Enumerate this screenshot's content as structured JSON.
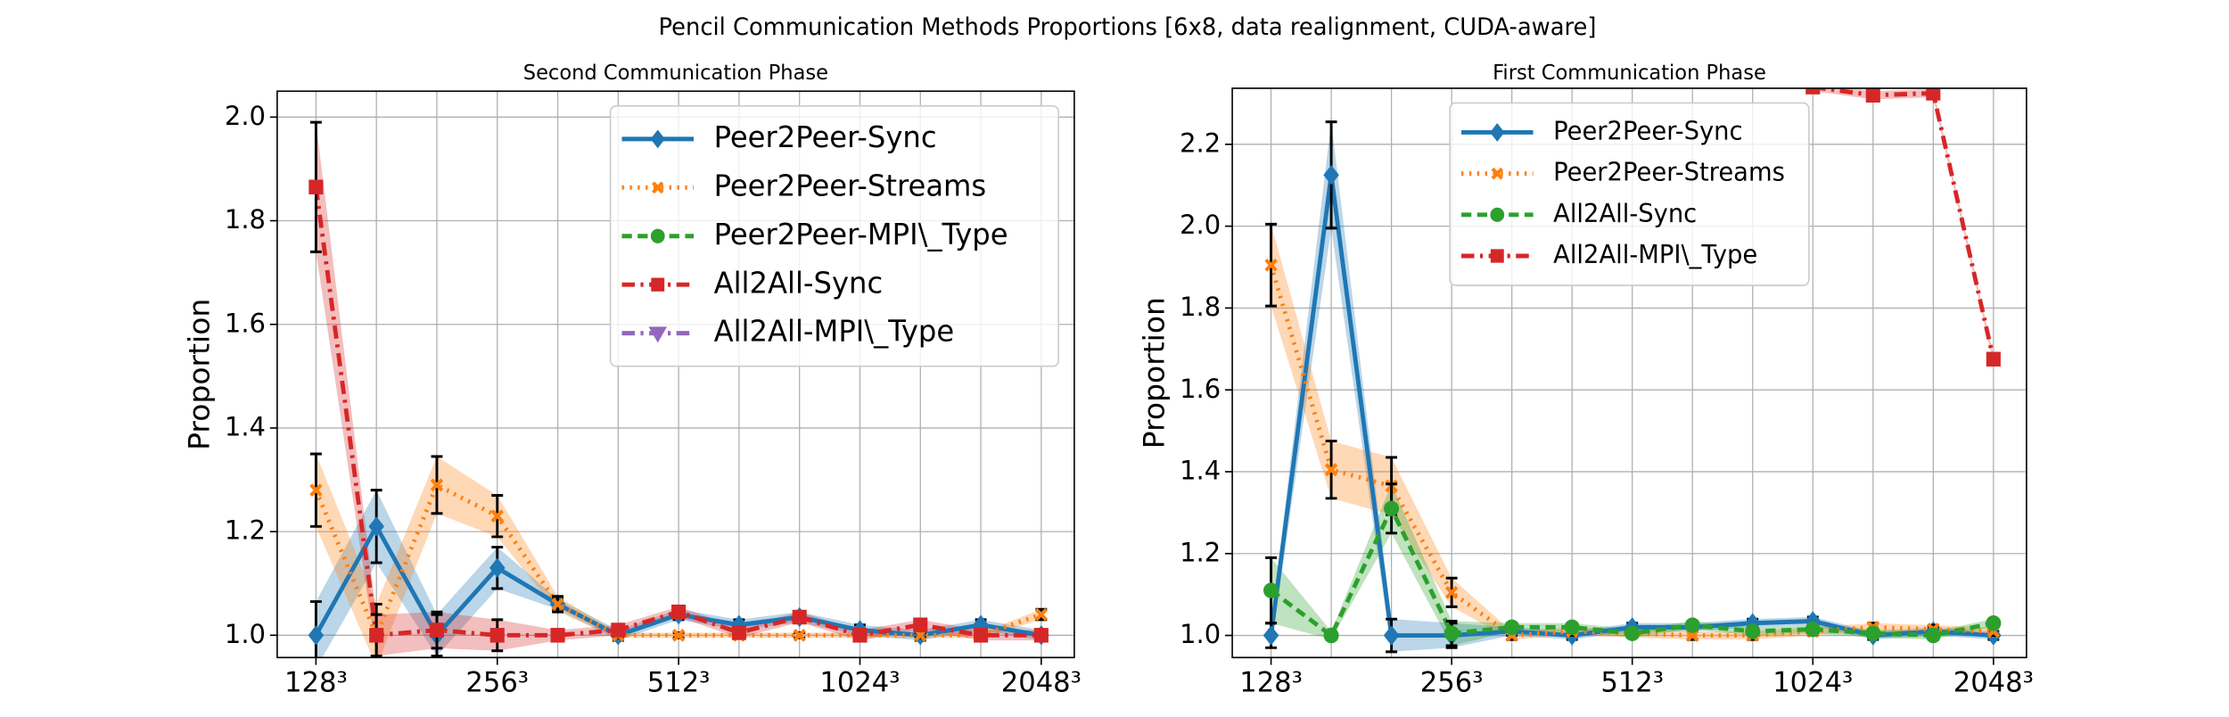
{
  "title": "Pencil Communication Methods Proportions [6x8, data realignment, CUDA-aware]",
  "chart_data": [
    {
      "type": "line",
      "title": "Second Communication Phase",
      "ylabel": "Proportion",
      "grid": true,
      "legend": "upper right",
      "categories": [
        "128³",
        null,
        null,
        "256³",
        null,
        null,
        "512³",
        null,
        null,
        "1024³",
        null,
        null,
        "2048³"
      ],
      "ylim": [
        0.957,
        2.05
      ],
      "yticks": [
        {
          "value": 1.0,
          "label": "1.0"
        },
        {
          "value": 1.2,
          "label": "1.2"
        },
        {
          "value": 1.4,
          "label": "1.4"
        },
        {
          "value": 1.6,
          "label": "1.6"
        },
        {
          "value": 1.8,
          "label": "1.8"
        },
        {
          "value": 2.0,
          "label": "2.0"
        }
      ],
      "series": [
        {
          "name": "Peer2Peer-Sync",
          "color": "#1f77b4",
          "linestyle": "solid",
          "marker": "diamond",
          "values": [
            1.0,
            1.21,
            1.0,
            1.13,
            1.06,
            1.0,
            1.04,
            1.02,
            1.035,
            1.01,
            1.0,
            1.02,
            1.0
          ],
          "errors": [
            0.065,
            0.07,
            0.04,
            0.04,
            0.01,
            0.01,
            0.01,
            0.01,
            0.01,
            0.01,
            0.01,
            0.01,
            0.01
          ]
        },
        {
          "name": "Peer2Peer-Streams",
          "color": "#ff7f0e",
          "linestyle": "dotted",
          "marker": "x",
          "values": [
            1.28,
            1.0,
            1.29,
            1.23,
            1.06,
            1.0,
            1.0,
            1.0,
            1.0,
            1.0,
            1.0,
            1.0,
            1.04
          ],
          "errors": [
            0.07,
            0.06,
            0.055,
            0.04,
            0.015,
            0.005,
            0.005,
            0.005,
            0.005,
            0.005,
            0.005,
            0.005,
            0.01
          ]
        },
        {
          "name": "Peer2Peer-MPI\\_Type",
          "color": "#2ca02c",
          "linestyle": "dashed",
          "marker": "circle",
          "values": [
            null,
            null,
            null,
            null,
            null,
            null,
            null,
            null,
            null,
            null,
            null,
            null,
            null
          ]
        },
        {
          "name": "All2All-Sync",
          "color": "#d62728",
          "linestyle": "dashdot",
          "marker": "square",
          "values": [
            1.865,
            1.0,
            1.01,
            1.0,
            1.0,
            1.01,
            1.045,
            1.005,
            1.035,
            1.0,
            1.02,
            1.0,
            1.0
          ],
          "errors": [
            0.125,
            0.04,
            0.035,
            0.03,
            0.01,
            0.01,
            0.01,
            0.01,
            0.01,
            0.01,
            0.01,
            0.01,
            0.01
          ]
        },
        {
          "name": "All2All-MPI\\_Type",
          "color": "#9467bd",
          "linestyle": "dashdot",
          "marker": "triangle",
          "values": [
            null,
            null,
            null,
            null,
            null,
            null,
            null,
            null,
            null,
            null,
            null,
            null,
            null
          ]
        }
      ]
    },
    {
      "type": "line",
      "title": "First Communication Phase",
      "ylabel": "Proportion",
      "grid": true,
      "legend": "upper center",
      "categories": [
        "128³",
        null,
        null,
        "256³",
        null,
        null,
        "512³",
        null,
        null,
        "1024³",
        null,
        null,
        "2048³"
      ],
      "ylim": [
        0.946,
        2.337
      ],
      "yticks": [
        {
          "value": 1.0,
          "label": "1.0"
        },
        {
          "value": 1.2,
          "label": "1.2"
        },
        {
          "value": 1.4,
          "label": "1.4"
        },
        {
          "value": 1.6,
          "label": "1.6"
        },
        {
          "value": 1.8,
          "label": "1.8"
        },
        {
          "value": 2.0,
          "label": "2.0"
        },
        {
          "value": 2.2,
          "label": "2.2"
        }
      ],
      "series": [
        {
          "name": "Peer2Peer-Sync",
          "color": "#1f77b4",
          "linestyle": "solid",
          "marker": "diamond",
          "values": [
            1.0,
            2.125,
            1.0,
            1.0,
            1.01,
            1.0,
            1.02,
            1.02,
            1.03,
            1.035,
            1.0,
            1.01,
            1.0
          ],
          "errors": [
            0.03,
            0.13,
            0.04,
            0.03,
            0.01,
            0.01,
            0.01,
            0.01,
            0.01,
            0.01,
            0.01,
            0.01,
            0.01
          ]
        },
        {
          "name": "Peer2Peer-Streams",
          "color": "#ff7f0e",
          "linestyle": "dotted",
          "marker": "x",
          "values": [
            1.905,
            1.405,
            1.365,
            1.105,
            1.0,
            1.01,
            1.005,
            1.0,
            1.0,
            1.01,
            1.02,
            1.015,
            1.01
          ],
          "errors": [
            0.1,
            0.07,
            0.07,
            0.035,
            0.01,
            0.01,
            0.01,
            0.01,
            0.01,
            0.01,
            0.01,
            0.01,
            0.01
          ]
        },
        {
          "name": "All2All-Sync",
          "color": "#2ca02c",
          "linestyle": "dashed",
          "marker": "circle",
          "values": [
            1.11,
            1.0,
            1.31,
            1.005,
            1.02,
            1.02,
            1.005,
            1.025,
            1.01,
            1.015,
            1.005,
            1.0,
            1.03
          ],
          "errors": [
            0.08,
            0.01,
            0.06,
            0.03,
            0.01,
            0.01,
            0.01,
            0.01,
            0.01,
            0.01,
            0.01,
            0.01,
            0.01
          ]
        },
        {
          "name": "All2All-MPI\\_Type",
          "color": "#d62728",
          "linestyle": "dashdot",
          "marker": "square",
          "values": [
            null,
            null,
            null,
            null,
            null,
            null,
            null,
            null,
            null,
            2.34,
            2.32,
            2.325,
            1.675
          ],
          "errors": [
            null,
            null,
            null,
            null,
            null,
            null,
            null,
            null,
            null,
            0.01,
            0.01,
            0.01,
            0.01
          ]
        }
      ]
    }
  ]
}
